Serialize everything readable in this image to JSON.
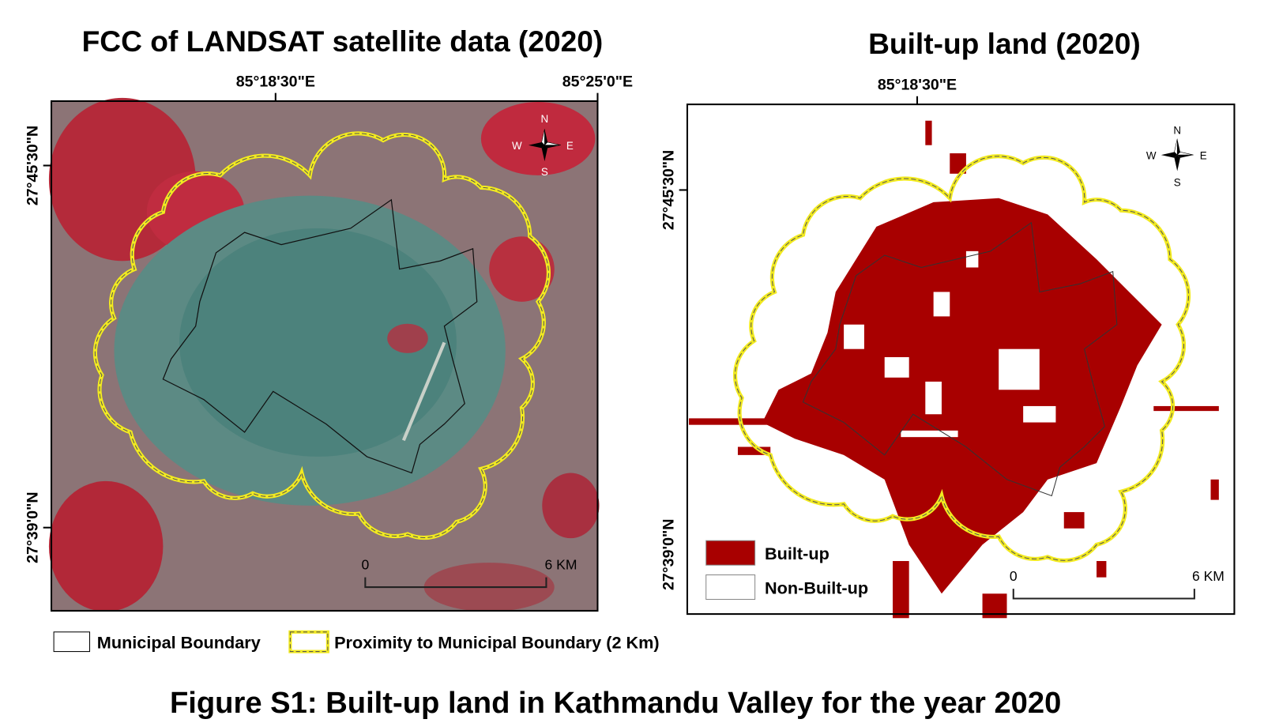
{
  "left_map": {
    "title": "FCC of LANDSAT satellite data (2020)",
    "longitude_labels": [
      "85°18'30\"E",
      "85°25'0\"E"
    ],
    "latitude_labels": [
      "27°45'30\"N",
      "27°39'0\"N"
    ],
    "compass": [
      "N",
      "S",
      "W",
      "E"
    ],
    "scale_bar": [
      "0",
      "6 KM"
    ]
  },
  "right_map": {
    "title": "Built-up land (2020)",
    "longitude_labels": [
      "85°18'30\"E"
    ],
    "latitude_labels": [
      "27°45'30\"N",
      "27°39'0\"N"
    ],
    "compass": [
      "N",
      "S",
      "W",
      "E"
    ],
    "scale_bar": [
      "0",
      "6 KM"
    ],
    "legend": [
      "Built-up",
      "Non-Built-up"
    ]
  },
  "shared_legend": [
    "Municipal Boundary",
    "Proximity to Municipal Boundary (2 Km)"
  ],
  "caption": "Figure S1: Built-up land in Kathmandu Valley for the year 2020"
}
